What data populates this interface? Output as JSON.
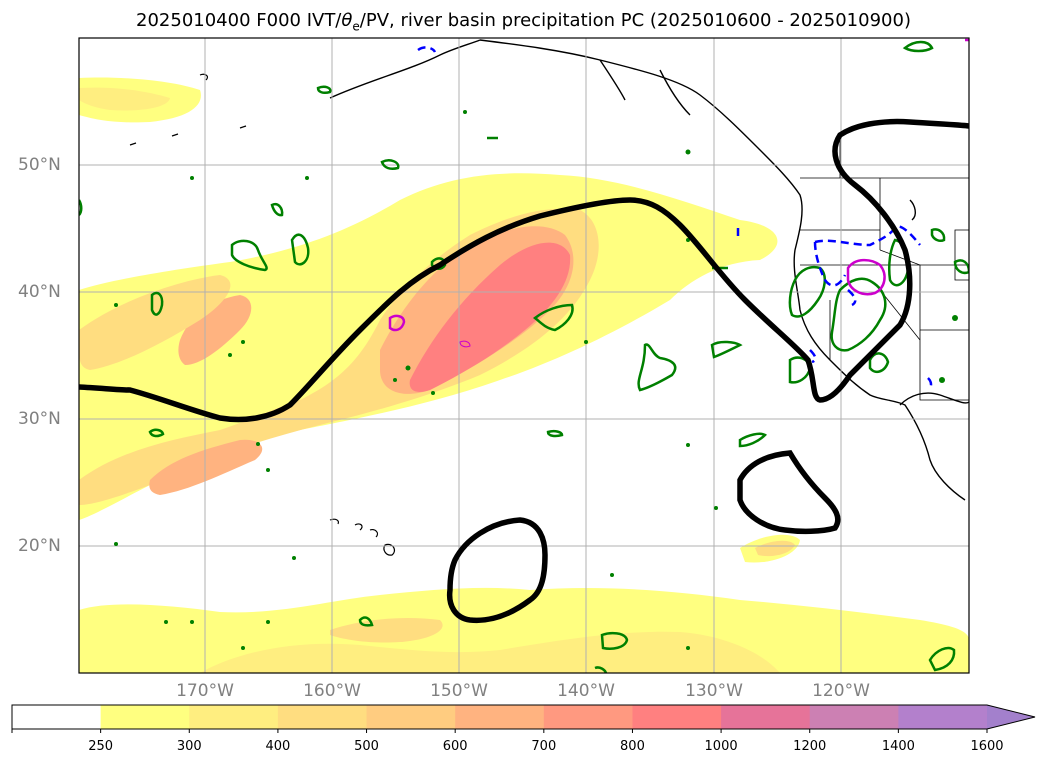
{
  "title_prefix": "2025010400 F000 IVT/",
  "title_theta": "θ",
  "title_sub": "e",
  "title_suffix": "/PV, river basin precipitation PC (2025010600 - 2025010900)",
  "lat_labels": [
    "50°N",
    "40°N",
    "30°N",
    "20°N"
  ],
  "lon_labels": [
    "170°W",
    "160°W",
    "150°W",
    "140°W",
    "130°W",
    "120°W"
  ],
  "colorbar_labels": [
    "250",
    "300",
    "400",
    "500",
    "600",
    "700",
    "800",
    "1000",
    "1200",
    "1400",
    "1600"
  ],
  "colorbar_colors": [
    "#ffffff",
    "#ffff80",
    "#ffee80",
    "#ffdd80",
    "#ffcc80",
    "#ffb380",
    "#ff9980",
    "#ff8080",
    "#e67399",
    "#cc80b3",
    "#b380cc",
    "#a380cc"
  ],
  "colors": {
    "ivt_contour": "#000000",
    "precip_positive": "#008000",
    "precip_negative": "#0000ff",
    "pv": "#cc00cc",
    "gridline": "#b0b0b0"
  }
}
